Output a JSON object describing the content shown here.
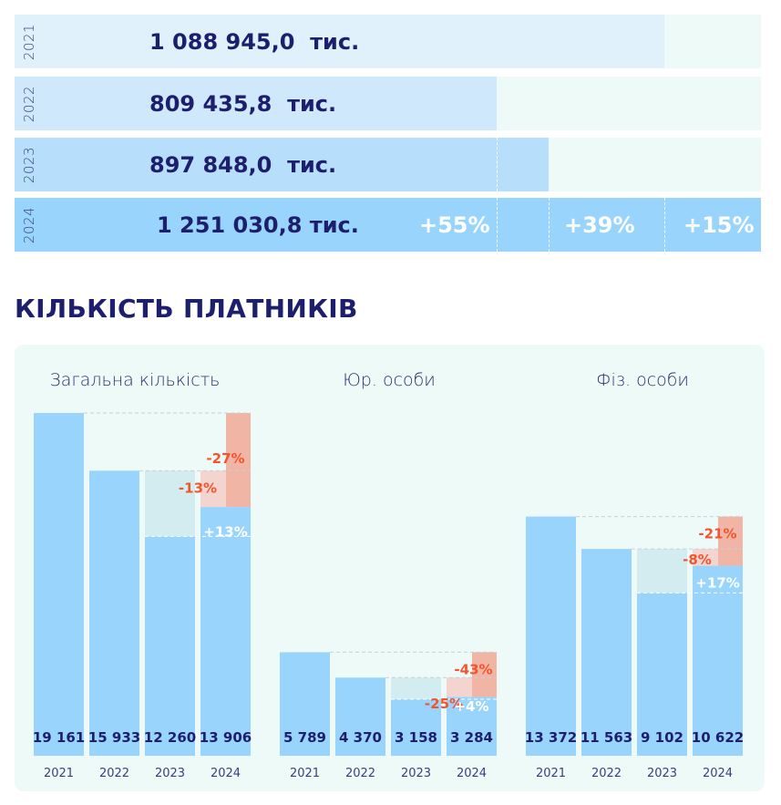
{
  "revenue": {
    "rows": [
      {
        "year": "2021",
        "value": "1 088 945,0  тис.",
        "amount": 1088945.0,
        "color": "#e0f1fc"
      },
      {
        "year": "2022",
        "value": "809 435,8  тис.",
        "amount": 809435.8,
        "color": "#cfe8fb"
      },
      {
        "year": "2023",
        "value": "897 848,0  тис.",
        "amount": 897848.0,
        "color": "#b7dffb"
      },
      {
        "year": "2024",
        "value": "1 251 030,8 тис.",
        "amount": 1251030.8,
        "color": "#99d4fd"
      }
    ],
    "growth": [
      "+55%",
      "+39%",
      "+15%"
    ]
  },
  "payers": {
    "title": "КІЛЬКІСТЬ ПЛАТНИКІВ"
  },
  "chart_data": [
    {
      "type": "bar",
      "title": "Загальна кількість",
      "categories": [
        "2021",
        "2022",
        "2023",
        "2024"
      ],
      "values": [
        19161,
        15933,
        12260,
        13906
      ],
      "labels": [
        "19 161",
        "15 933",
        "12 260",
        "13 906"
      ],
      "annotations": {
        "pct_vs_2021": "-27%",
        "pct_vs_2022": "-13%",
        "pct_vs_2023": "+13%"
      }
    },
    {
      "type": "bar",
      "title": "Юр. особи",
      "categories": [
        "2021",
        "2022",
        "2023",
        "2024"
      ],
      "values": [
        5789,
        4370,
        3158,
        3284
      ],
      "labels": [
        "5 789",
        "4 370",
        "3 158",
        "3 284"
      ],
      "annotations": {
        "pct_vs_2021": "-43%",
        "pct_vs_2022": "-25%",
        "pct_vs_2023": "+4%"
      }
    },
    {
      "type": "bar",
      "title": "Фіз. особи",
      "categories": [
        "2021",
        "2022",
        "2023",
        "2024"
      ],
      "values": [
        13372,
        11563,
        9102,
        10622
      ],
      "labels": [
        "13 372",
        "11 563",
        "9 102",
        "10 622"
      ],
      "annotations": {
        "pct_vs_2021": "-21%",
        "pct_vs_2022": "-8%",
        "pct_vs_2023": "+17%"
      }
    }
  ],
  "colors": {
    "bar": "#99d4fd",
    "drop": "#f1b5a6",
    "drop_light": "#f3d4cf",
    "gain_bg": "#d3ecef",
    "text": "#1d1f6e",
    "red": "#f2542d"
  }
}
